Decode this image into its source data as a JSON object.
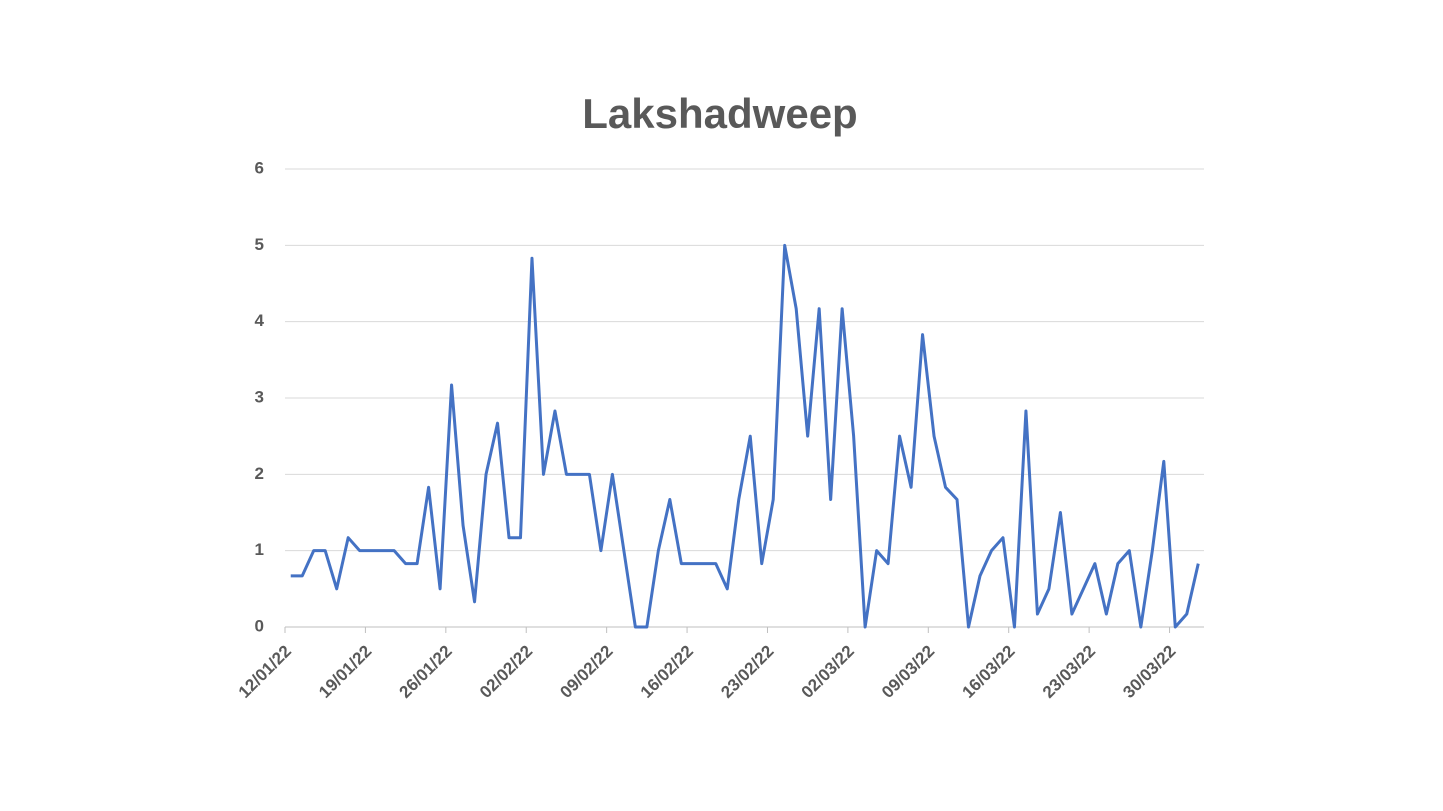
{
  "chart_data": {
    "type": "line",
    "title": "Lakshadweep",
    "categories": [
      "12/01/22",
      null,
      null,
      null,
      null,
      null,
      null,
      "19/01/22",
      null,
      null,
      null,
      null,
      null,
      null,
      "26/01/22",
      null,
      null,
      null,
      null,
      null,
      null,
      "02/02/22",
      null,
      null,
      null,
      null,
      null,
      null,
      "09/02/22",
      null,
      null,
      null,
      null,
      null,
      null,
      "16/02/22",
      null,
      null,
      null,
      null,
      null,
      null,
      "23/02/22",
      null,
      null,
      null,
      null,
      null,
      null,
      "02/03/22",
      null,
      null,
      null,
      null,
      null,
      null,
      "09/03/22",
      null,
      null,
      null,
      null,
      null,
      null,
      "16/03/22",
      null,
      null,
      null,
      null,
      null,
      null,
      "23/03/22",
      null,
      null,
      null,
      null,
      null,
      null,
      "30/03/22",
      null,
      null
    ],
    "values": [
      0.67,
      0.67,
      1,
      1,
      0.5,
      1.17,
      1,
      1,
      1,
      1,
      0.83,
      0.83,
      1.83,
      0.5,
      3.17,
      1.33,
      0.33,
      2,
      2.67,
      1.17,
      1.17,
      4.83,
      2,
      2.83,
      2,
      2,
      2,
      1,
      2,
      1,
      0,
      0,
      1,
      1.67,
      0.83,
      0.83,
      0.83,
      0.83,
      0.5,
      1.67,
      2.5,
      0.83,
      1.67,
      5,
      4.17,
      2.5,
      4.17,
      1.67,
      4.17,
      2.5,
      0,
      1,
      0.83,
      2.5,
      1.83,
      3.83,
      2.5,
      1.83,
      1.67,
      0,
      0.67,
      1,
      1.17,
      0,
      2.83,
      0.17,
      0.5,
      1.5,
      0.17,
      0.5,
      0.83,
      0.17,
      0.83,
      1,
      0,
      1,
      2.17,
      0,
      0.17,
      0.83
    ],
    "color": "#4472c4",
    "ylim": [
      0,
      6
    ],
    "yticks": [
      0,
      1,
      2,
      3,
      4,
      5,
      6
    ],
    "grid": true
  }
}
